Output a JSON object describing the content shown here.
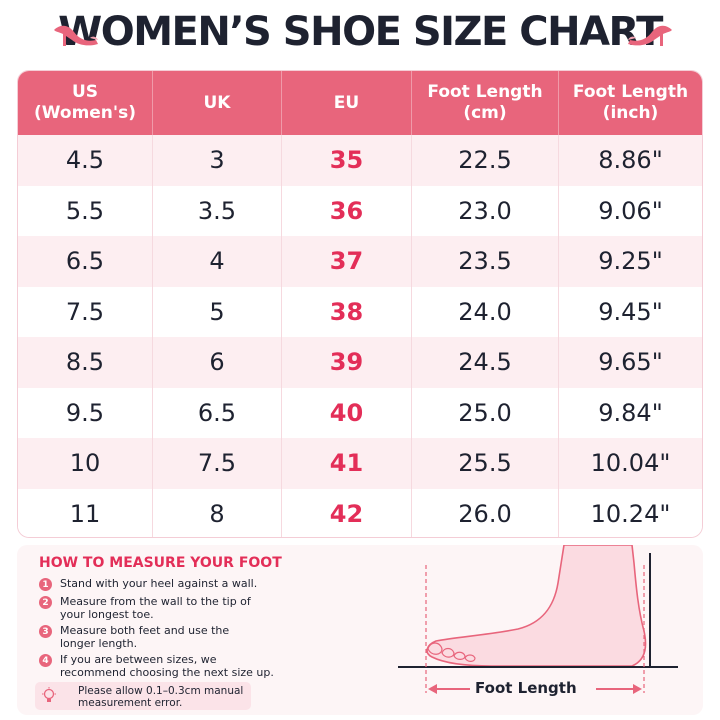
{
  "title": "WOMEN’S SHOE SIZE CHART",
  "colors": {
    "header": "#e8657c",
    "accent": "#e32e58",
    "text": "#1e2230",
    "row_alt": "#fdeef1"
  },
  "table": {
    "headers": [
      {
        "line1": "US",
        "line2": "(Women's)"
      },
      {
        "line1": "UK",
        "line2": ""
      },
      {
        "line1": "EU",
        "line2": ""
      },
      {
        "line1": "Foot Length",
        "line2": "(cm)"
      },
      {
        "line1": "Foot Length",
        "line2": "(inch)"
      }
    ],
    "rows": [
      [
        "4.5",
        "3",
        "35",
        "22.5",
        "8.86\""
      ],
      [
        "5.5",
        "3.5",
        "36",
        "23.0",
        "9.06\""
      ],
      [
        "6.5",
        "4",
        "37",
        "23.5",
        "9.25\""
      ],
      [
        "7.5",
        "5",
        "38",
        "24.0",
        "9.45\""
      ],
      [
        "8.5",
        "6",
        "39",
        "24.5",
        "9.65\""
      ],
      [
        "9.5",
        "6.5",
        "40",
        "25.0",
        "9.84\""
      ],
      [
        "10",
        "7.5",
        "41",
        "25.5",
        "10.04\""
      ],
      [
        "11",
        "8",
        "42",
        "26.0",
        "10.24\""
      ]
    ]
  },
  "measure": {
    "title": "HOW TO MEASURE YOUR FOOT",
    "steps": [
      {
        "num": "1",
        "text": "Stand with your heel against a wall."
      },
      {
        "num": "2",
        "text": "Measure from the wall to the tip of your longest toe."
      },
      {
        "num": "3",
        "text": "Measure both feet and use the longer length."
      },
      {
        "num": "4",
        "text": "If you are between sizes, we recommend choosing the next size up."
      }
    ],
    "note": "Please allow 0.1–0.3cm manual measurement error.",
    "diagram_label": "Foot Length"
  }
}
